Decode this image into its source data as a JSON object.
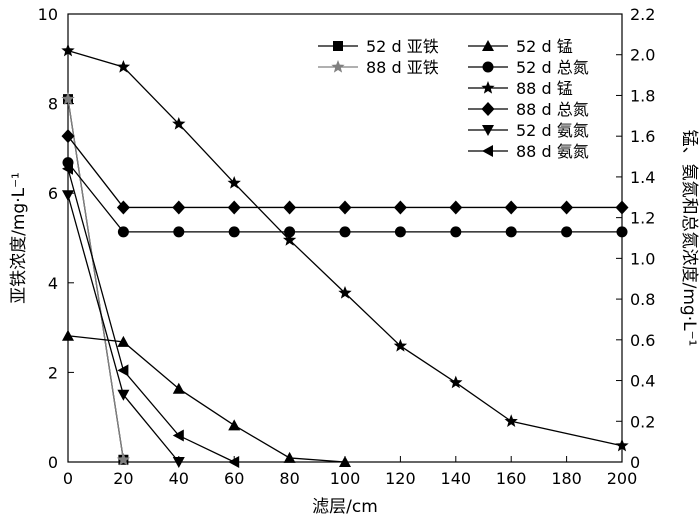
{
  "chart_data": {
    "type": "line",
    "title": "",
    "xlabel": "滤层/cm",
    "ylabel_left": "亚铁浓度/mg·L⁻¹",
    "ylabel_right": "锰、氨氮和总氮浓度/mg·L⁻¹",
    "xlim": [
      0,
      200
    ],
    "ylim_left": [
      0,
      10
    ],
    "ylim_right": [
      0,
      2.2
    ],
    "x_ticks": [
      "0",
      "20",
      "40",
      "60",
      "80",
      "100",
      "120",
      "140",
      "160",
      "180",
      "200"
    ],
    "y_left_ticks": [
      "0",
      "2",
      "4",
      "6",
      "8",
      "10"
    ],
    "y_right_ticks": [
      "0",
      "0.2",
      "0.4",
      "0.6",
      "0.8",
      "1.0",
      "1.2",
      "1.4",
      "1.6",
      "1.8",
      "2.0",
      "2.2"
    ],
    "grid": false,
    "legend_position": "top-right",
    "series": [
      {
        "name": "52 d 亚铁",
        "axis": "left",
        "marker": "square",
        "color": "#000000",
        "x": [
          0,
          20
        ],
        "y": [
          8.1,
          0.05
        ]
      },
      {
        "name": "88 d 亚铁",
        "axis": "left",
        "marker": "star",
        "color": "#808080",
        "x": [
          0,
          20
        ],
        "y": [
          8.1,
          0.05
        ]
      },
      {
        "name": "52 d 锰",
        "axis": "right",
        "marker": "triangle-up",
        "color": "#000000",
        "x": [
          0,
          20,
          40,
          60,
          80,
          100
        ],
        "y": [
          0.62,
          0.59,
          0.36,
          0.18,
          0.02,
          0.0
        ]
      },
      {
        "name": "52 d 总氮",
        "axis": "right",
        "marker": "circle",
        "color": "#000000",
        "x": [
          0,
          20,
          40,
          60,
          80,
          100,
          120,
          140,
          160,
          180,
          200
        ],
        "y": [
          1.47,
          1.13,
          1.13,
          1.13,
          1.13,
          1.13,
          1.13,
          1.13,
          1.13,
          1.13,
          1.13
        ]
      },
      {
        "name": "88 d 锰",
        "axis": "right",
        "marker": "star",
        "color": "#000000",
        "x": [
          0,
          20,
          40,
          60,
          80,
          100,
          120,
          140,
          160,
          200
        ],
        "y": [
          2.02,
          1.94,
          1.66,
          1.37,
          1.09,
          0.83,
          0.57,
          0.39,
          0.2,
          0.08
        ]
      },
      {
        "name": "88 d 总氮",
        "axis": "right",
        "marker": "diamond",
        "color": "#000000",
        "x": [
          0,
          20,
          40,
          60,
          80,
          100,
          120,
          140,
          160,
          180,
          200
        ],
        "y": [
          1.6,
          1.25,
          1.25,
          1.25,
          1.25,
          1.25,
          1.25,
          1.25,
          1.25,
          1.25,
          1.25
        ]
      },
      {
        "name": "52 d 氨氮",
        "axis": "right",
        "marker": "triangle-down",
        "color": "#000000",
        "x": [
          0,
          20,
          40
        ],
        "y": [
          1.31,
          0.33,
          0.0
        ]
      },
      {
        "name": "88 d 氨氮",
        "axis": "right",
        "marker": "triangle-left",
        "color": "#000000",
        "x": [
          0,
          20,
          40,
          60
        ],
        "y": [
          1.44,
          0.45,
          0.13,
          0.0
        ]
      }
    ]
  }
}
